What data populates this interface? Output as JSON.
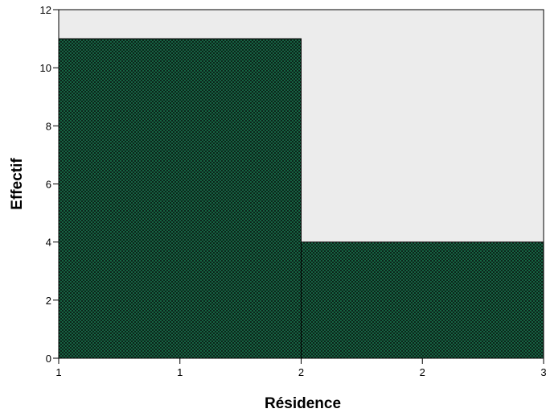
{
  "chart_data": {
    "type": "bar",
    "title": "",
    "xlabel": "Résidence",
    "ylabel": "Effectif",
    "bins": [
      {
        "x_start": 1,
        "x_end": 2,
        "value": 11
      },
      {
        "x_start": 2,
        "x_end": 3,
        "value": 4
      }
    ],
    "xlim": [
      1,
      3
    ],
    "ylim": [
      0,
      12
    ],
    "y_ticks": [
      0,
      2,
      4,
      6,
      8,
      10,
      12
    ],
    "x_tick_positions": [
      1,
      1.5,
      2,
      2.5,
      3
    ],
    "x_tick_labels": [
      "1",
      "1",
      "2",
      "2",
      "3"
    ],
    "grid": false,
    "colors": {
      "plot_background": "#ececec",
      "bar_fill": "#1a7a52",
      "bar_pattern": "#0b1f16",
      "bar_edge": "#000000"
    }
  }
}
